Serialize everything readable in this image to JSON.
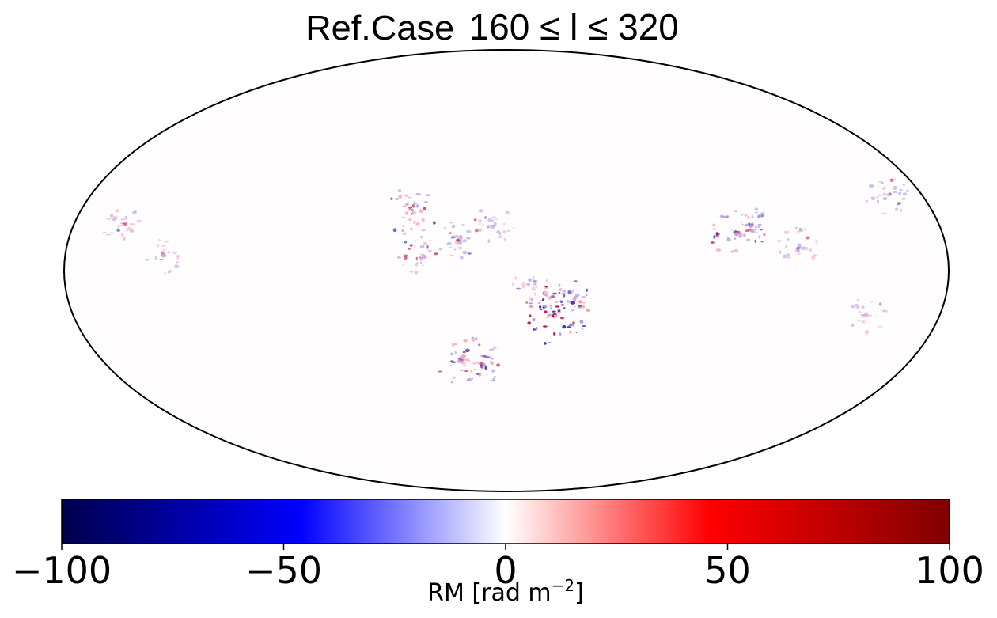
{
  "chart_data": {
    "type": "heatmap",
    "projection": "mollweide",
    "title": {
      "prefix": "Ref.Case",
      "range": "160 ≤ l ≤ 320"
    },
    "colorbar": {
      "label_main": "RM [rad m",
      "label_exp": "−2",
      "label_close": "]",
      "vmin": -100,
      "vmax": 100,
      "ticks": [
        -100,
        -50,
        0,
        50,
        100
      ],
      "tick_labels": [
        "−100",
        "−50",
        "0",
        "50",
        "100"
      ],
      "colormap": "seismic",
      "orientation": "horizontal",
      "position": "bottom"
    },
    "colors": {
      "neg_extreme": "#00004d",
      "neg_mid": "#0000ff",
      "zero": "#ffffff",
      "pos_mid": "#ff0000",
      "pos_extreme": "#800000"
    },
    "features": [
      {
        "lon": 40,
        "lat": 20,
        "strength": 0.55
      },
      {
        "lon": 35,
        "lat": 5,
        "strength": 0.35
      },
      {
        "lon": 20,
        "lat": 10,
        "strength": 0.3
      },
      {
        "lon": -20,
        "lat": -15,
        "strength": 0.9
      },
      {
        "lon": -25,
        "lat": -10,
        "strength": 0.5
      },
      {
        "lon": 20,
        "lat": -30,
        "strength": 0.55
      },
      {
        "lon": 10,
        "lat": -32,
        "strength": 0.4
      },
      {
        "lon": -95,
        "lat": 12,
        "strength": 0.5
      },
      {
        "lon": -100,
        "lat": 15,
        "strength": 0.35
      },
      {
        "lon": -120,
        "lat": 8,
        "strength": 0.25
      },
      {
        "lon": 140,
        "lat": 5,
        "strength": 0.2
      },
      {
        "lon": 160,
        "lat": 15,
        "strength": 0.25
      },
      {
        "lon": -165,
        "lat": 25,
        "strength": 0.3
      },
      {
        "lon": -150,
        "lat": -15,
        "strength": 0.2
      },
      {
        "lon": 5,
        "lat": 15,
        "strength": 0.25
      },
      {
        "lon": -10,
        "lat": -5,
        "strength": 0.2
      }
    ]
  }
}
